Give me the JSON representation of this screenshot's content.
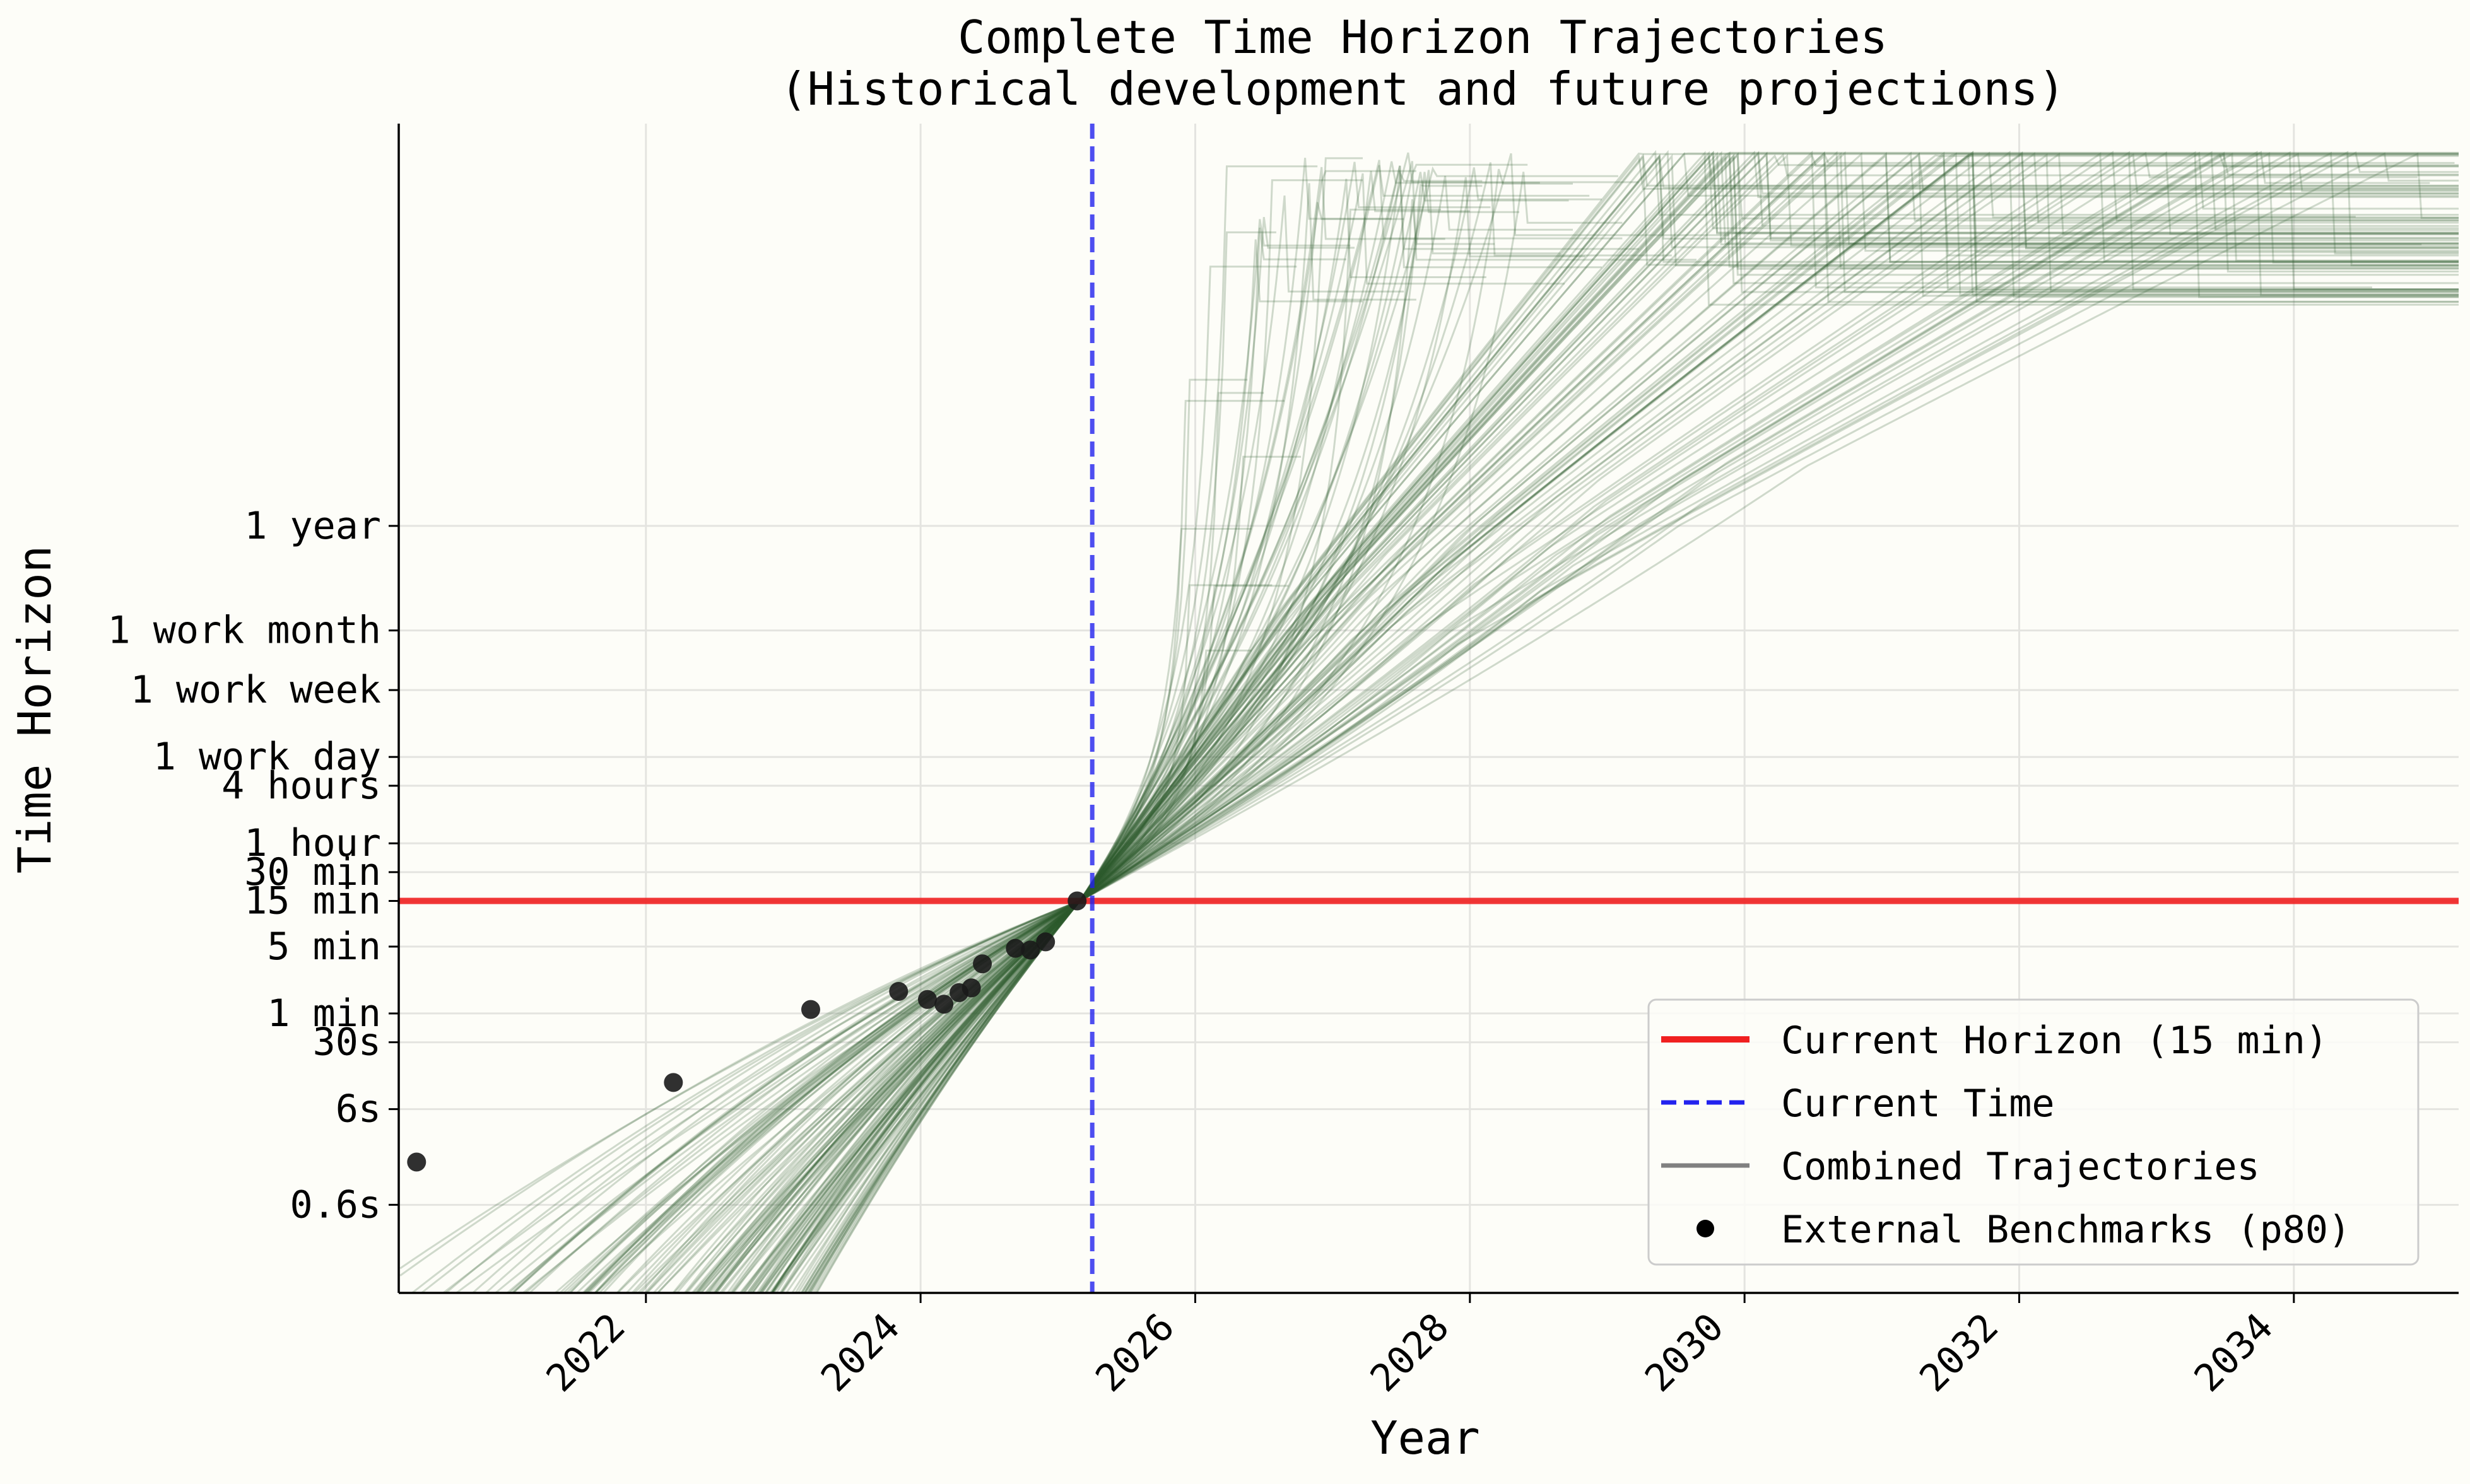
{
  "chart_data": {
    "type": "line",
    "title": "Complete Time Horizon Trajectories",
    "subtitle": "(Historical development and future projections)",
    "xlabel": "Year",
    "ylabel": "Time Horizon",
    "xlim": [
      2020.2,
      2035.2
    ],
    "ylim_minutes": [
      0.0012,
      2000000000
    ],
    "y_scale": "log",
    "x_ticks": [
      2022,
      2024,
      2026,
      2028,
      2030,
      2032,
      2034
    ],
    "y_ticks": [
      {
        "label": "0.6s",
        "minutes": 0.01
      },
      {
        "label": "6s",
        "minutes": 0.1
      },
      {
        "label": "30s",
        "minutes": 0.5
      },
      {
        "label": "1 min",
        "minutes": 1
      },
      {
        "label": "5 min",
        "minutes": 5
      },
      {
        "label": "15 min",
        "minutes": 15
      },
      {
        "label": "30 min",
        "minutes": 30
      },
      {
        "label": "1 hour",
        "minutes": 60
      },
      {
        "label": "4 hours",
        "minutes": 240
      },
      {
        "label": "1 work day",
        "minutes": 480
      },
      {
        "label": "1 work week",
        "minutes": 2400
      },
      {
        "label": "1 work month",
        "minutes": 10080
      },
      {
        "label": "1 year",
        "minutes": 124800
      }
    ],
    "grid": true,
    "legend_position": "bottom-right",
    "current_horizon_minutes": 15,
    "current_time_year": 2025.25,
    "colors": {
      "current_horizon": "#f02020",
      "current_time": "#2222ee",
      "trajectories": "#2f5a2f",
      "legend_trajectories": "#808080",
      "benchmarks": "#1a1a1a",
      "background": "#fdfdf8"
    },
    "legend": [
      {
        "label": "Current Horizon (15 min)",
        "kind": "solid-line",
        "color": "#f02020"
      },
      {
        "label": "Current Time",
        "kind": "dashed-line",
        "color": "#2222ee"
      },
      {
        "label": "Combined Trajectories",
        "kind": "solid-line",
        "color": "#808080"
      },
      {
        "label": "External Benchmarks (p80)",
        "kind": "dot",
        "color": "#000000"
      }
    ],
    "series": [
      {
        "name": "External Benchmarks (p80)",
        "type": "scatter",
        "points": [
          {
            "x": 2020.33,
            "y": 0.028
          },
          {
            "x": 2022.2,
            "y": 0.19
          },
          {
            "x": 2023.2,
            "y": 1.1
          },
          {
            "x": 2023.84,
            "y": 1.7
          },
          {
            "x": 2024.05,
            "y": 1.4
          },
          {
            "x": 2024.17,
            "y": 1.25
          },
          {
            "x": 2024.28,
            "y": 1.65
          },
          {
            "x": 2024.37,
            "y": 1.85
          },
          {
            "x": 2024.45,
            "y": 3.3
          },
          {
            "x": 2024.69,
            "y": 4.8
          },
          {
            "x": 2024.8,
            "y": 4.6
          },
          {
            "x": 2024.91,
            "y": 5.6
          },
          {
            "x": 2025.14,
            "y": 15
          }
        ]
      }
    ],
    "trajectory_count": 140
  }
}
